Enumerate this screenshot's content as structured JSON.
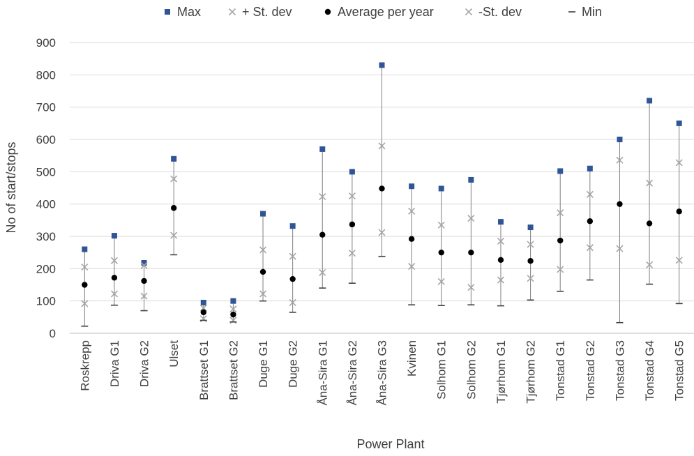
{
  "chart_data": {
    "type": "scatter",
    "title": "",
    "xlabel": "Power Plant",
    "ylabel": "No of start/stops",
    "ylim": [
      0,
      900
    ],
    "yticks": [
      0,
      100,
      200,
      300,
      400,
      500,
      600,
      700,
      800,
      900
    ],
    "grid": true,
    "legend_position": "top",
    "categories": [
      "Roskrepp",
      "Driva G1",
      "Driva G2",
      "Ulset",
      "Brattset G1",
      "Brattset G2",
      "Duge G1",
      "Duge G2",
      "Åna-Sira G1",
      "Åna-Sira G2",
      "Åna-Sira G3",
      "Kvinen",
      "Solhom G1",
      "Solhom G2",
      "Tjørhom G1",
      "Tjørhom G2",
      "Tonstad G1",
      "Tonstad G2",
      "Tonstad G3",
      "Tonstad G4",
      "Tonstad G5"
    ],
    "series": [
      {
        "name": "Max",
        "marker": "blue-square",
        "color": "#2f5597",
        "values": [
          260,
          302,
          218,
          540,
          95,
          100,
          370,
          332,
          570,
          500,
          830,
          455,
          448,
          475,
          345,
          328,
          502,
          510,
          600,
          720,
          650
        ]
      },
      {
        "name": "+ St. dev",
        "marker": "x",
        "color": "#a6a6a6",
        "values": [
          205,
          225,
          210,
          478,
          78,
          75,
          258,
          238,
          423,
          425,
          580,
          378,
          335,
          356,
          285,
          275,
          373,
          430,
          536,
          465,
          528
        ]
      },
      {
        "name": "Average  per year",
        "marker": "black-dot",
        "color": "#000000",
        "values": [
          150,
          172,
          162,
          388,
          65,
          58,
          190,
          168,
          305,
          337,
          448,
          292,
          250,
          250,
          227,
          224,
          287,
          347,
          400,
          340,
          377
        ]
      },
      {
        "name": "-St. dev",
        "marker": "x",
        "color": "#a6a6a6",
        "values": [
          92,
          122,
          115,
          303,
          45,
          40,
          122,
          95,
          188,
          248,
          312,
          207,
          160,
          142,
          165,
          170,
          198,
          265,
          262,
          212,
          226
        ]
      },
      {
        "name": "Min",
        "marker": "dash",
        "color": "#404040",
        "values": [
          22,
          87,
          70,
          243,
          40,
          35,
          100,
          65,
          140,
          155,
          238,
          88,
          86,
          88,
          85,
          103,
          130,
          165,
          33,
          152,
          92
        ]
      }
    ]
  }
}
